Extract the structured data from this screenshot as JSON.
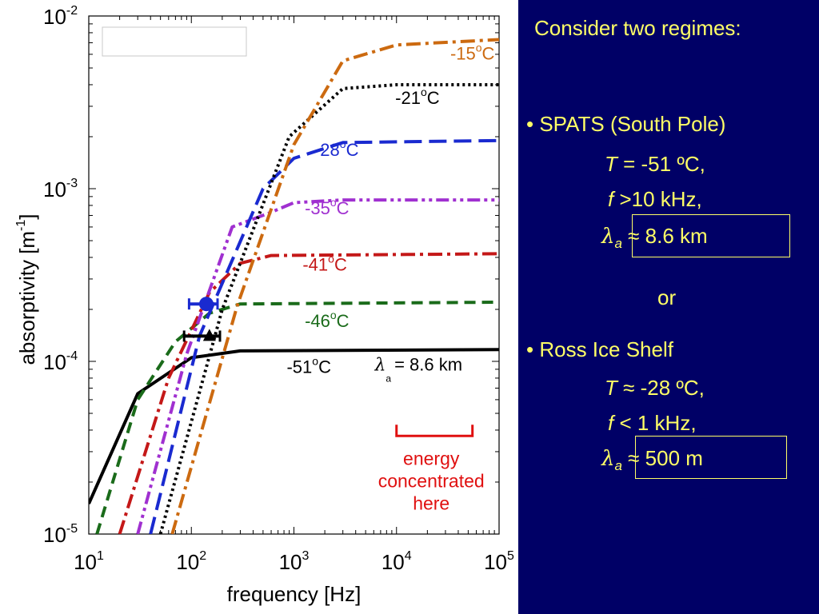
{
  "chart_data": {
    "type": "line",
    "xlabel": "frequency [Hz]",
    "ylabel": "absorptivity [m",
    "ylabel_sup": "-1",
    "ylabel_end": "]",
    "xscale": "log",
    "yscale": "log",
    "xlim": [
      10,
      100000
    ],
    "ylim": [
      1e-05,
      0.01
    ],
    "x_ticks": [
      {
        "base": "10",
        "exp": "1",
        "value": 10
      },
      {
        "base": "10",
        "exp": "2",
        "value": 100
      },
      {
        "base": "10",
        "exp": "3",
        "value": 1000
      },
      {
        "base": "10",
        "exp": "4",
        "value": 10000
      },
      {
        "base": "10",
        "exp": "5",
        "value": 100000
      }
    ],
    "y_ticks": [
      {
        "base": "10",
        "exp": "-5",
        "value": 1e-05
      },
      {
        "base": "10",
        "exp": "-4",
        "value": 0.0001
      },
      {
        "base": "10",
        "exp": "-3",
        "value": 0.001
      },
      {
        "base": "10",
        "exp": "-2",
        "value": 0.01
      }
    ],
    "series": [
      {
        "name": "-51",
        "unit": "C",
        "color": "#000000",
        "dash": "solid",
        "points": [
          [
            10,
            1.5e-05
          ],
          [
            30,
            6.5e-05
          ],
          [
            100,
            0.000105
          ],
          [
            300,
            0.000115
          ],
          [
            100000,
            0.000117
          ]
        ],
        "label_at": [
          1400,
          8.55e-05
        ]
      },
      {
        "name": "-46",
        "unit": "C",
        "color": "#1a6b1a",
        "dash": "dashed",
        "points": [
          [
            12,
            1e-05
          ],
          [
            30,
            6e-05
          ],
          [
            70,
            0.00013
          ],
          [
            150,
            0.00019
          ],
          [
            300,
            0.000215
          ],
          [
            100000,
            0.00022
          ]
        ],
        "label_at": [
          2100,
          0.000158
        ]
      },
      {
        "name": "-41",
        "unit": "C",
        "color": "#c41818",
        "dash": "dashdot",
        "points": [
          [
            20,
            1e-05
          ],
          [
            60,
            8e-05
          ],
          [
            150,
            0.00025
          ],
          [
            300,
            0.00037
          ],
          [
            600,
            0.00041
          ],
          [
            100000,
            0.00042
          ]
        ],
        "label_at": [
          2000,
          0.000335
        ]
      },
      {
        "name": "-35",
        "unit": "C",
        "color": "#a030d0",
        "dash": "dashdotdot",
        "points": [
          [
            30,
            1e-05
          ],
          [
            90,
            0.00011
          ],
          [
            250,
            0.0006
          ],
          [
            600,
            0.00073
          ],
          [
            1000,
            0.00083
          ],
          [
            3000,
            0.00086
          ],
          [
            100000,
            0.00086
          ]
        ],
        "label_at": [
          2100,
          0.00071
        ]
      },
      {
        "name": "-28",
        "unit": "C",
        "color": "#1a2ad0",
        "dash": "longdash",
        "points": [
          [
            40,
            1e-05
          ],
          [
            120,
            0.00014
          ],
          [
            500,
            0.001
          ],
          [
            1000,
            0.0015
          ],
          [
            3000,
            0.00185
          ],
          [
            100000,
            0.0019
          ]
        ],
        "label_at": [
          2600,
          0.00155
        ]
      },
      {
        "name": "-21",
        "unit": "C",
        "color": "#000000",
        "dash": "dotted",
        "points": [
          [
            50,
            1e-05
          ],
          [
            200,
            0.0002
          ],
          [
            900,
            0.002
          ],
          [
            3000,
            0.0038
          ],
          [
            10000,
            0.004
          ],
          [
            100000,
            0.004
          ]
        ],
        "label_at": [
          16000,
          0.0031
        ]
      },
      {
        "name": "-15",
        "unit": "C",
        "color": "#cc6a10",
        "dash": "dashdot",
        "points": [
          [
            65,
            1e-05
          ],
          [
            280,
            0.00021
          ],
          [
            1000,
            0.0018
          ],
          [
            3000,
            0.0055
          ],
          [
            10000,
            0.0068
          ],
          [
            100000,
            0.0073
          ]
        ],
        "label_at": [
          55000,
          0.0056
        ]
      }
    ],
    "markers": [
      {
        "type": "point",
        "x": 140,
        "y": 0.000215,
        "color": "#1a2ad0",
        "xerr": [
          95,
          180
        ]
      },
      {
        "type": "triangle",
        "x": 150,
        "y": 0.00014,
        "color": "#000000",
        "xerr": [
          85,
          190
        ]
      }
    ],
    "annotation_lambda": {
      "symbol": "λ",
      "sub": "a",
      "text": "= 8.6 km",
      "at": [
        10500,
        8.85e-05
      ]
    },
    "energy_bracket": {
      "x_start": 10000,
      "x_end": 55000,
      "y": 3.7e-05,
      "color": "#e01010"
    },
    "energy_text": [
      "energy",
      "concentrated",
      "here"
    ],
    "degree_symbol": "o",
    "legend_box": {
      "visible": true,
      "placement": "top-left",
      "text": ""
    }
  },
  "right_panel": {
    "heading": "Consider two regimes:",
    "spats": {
      "title": "• SPATS (South Pole)",
      "t_sym": "T",
      "t_val": " = -51 ºC,",
      "f_sym": "f",
      "f_val": " >10 kHz,",
      "lambda_sym": "λ",
      "lambda_sub": "a",
      "lambda_val": " ≈ 8.6 km"
    },
    "or": "or",
    "ross": {
      "title": "• Ross Ice Shelf",
      "t_sym": "T",
      "t_val": " ≈ -28 ºC,",
      "f_sym": "f",
      "f_val": " < 1 kHz,",
      "lambda_sym": "λ",
      "lambda_sub": "a",
      "lambda_val": " ≈ 500 m"
    },
    "colors": {
      "background": "#000066",
      "text": "#ffff66"
    }
  }
}
